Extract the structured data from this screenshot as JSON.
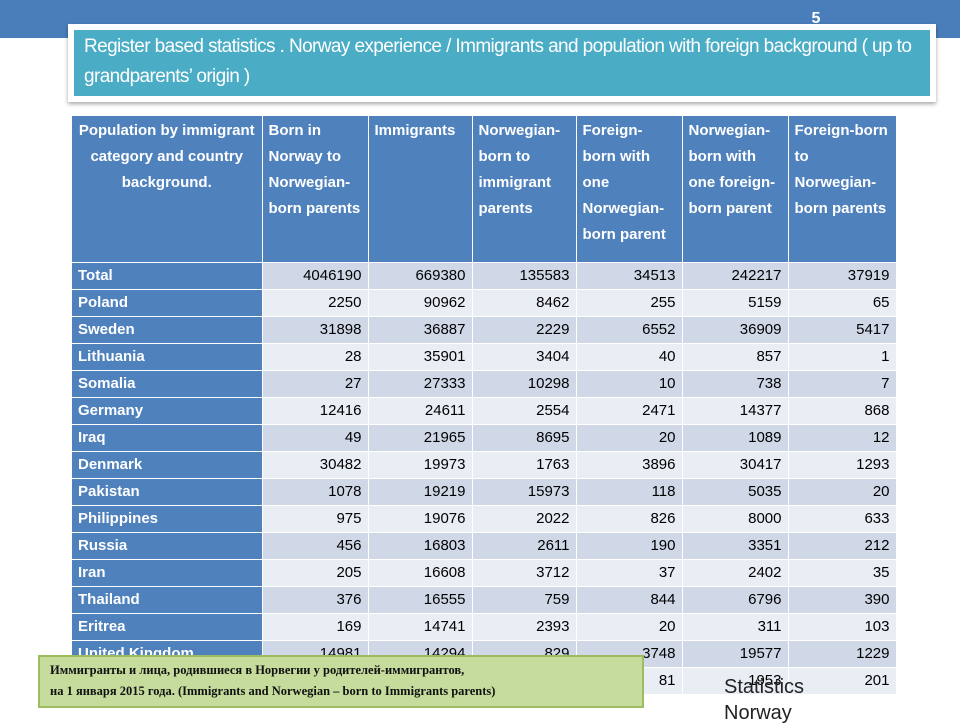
{
  "slide": {
    "number": "5",
    "title": "Register based statistics . Norway experience /  Immigrants and population with foreign background ( up to grandparents’ origin )"
  },
  "table": {
    "headers": [
      "Population by immigrant category and country background.",
      "Born in Norway to Norwegian-born parents",
      "Immigrants",
      "Norwegian-born to immigrant parents",
      "Foreign-born with one Norwegian-born parent",
      "Norwegian-born with one foreign-born parent",
      "Foreign-born to Norwegian-born parents"
    ],
    "rows": [
      {
        "country": "Total",
        "values": [
          "4046190",
          "669380",
          "135583",
          "34513",
          "242217",
          "37919"
        ]
      },
      {
        "country": "Poland",
        "values": [
          "2250",
          "90962",
          "8462",
          "255",
          "5159",
          "65"
        ]
      },
      {
        "country": "Sweden",
        "values": [
          "31898",
          "36887",
          "2229",
          "6552",
          "36909",
          "5417"
        ]
      },
      {
        "country": "Lithuania",
        "values": [
          "28",
          "35901",
          "3404",
          "40",
          "857",
          "1"
        ]
      },
      {
        "country": "Somalia",
        "values": [
          "27",
          "27333",
          "10298",
          "10",
          "738",
          "7"
        ]
      },
      {
        "country": "Germany",
        "values": [
          "12416",
          "24611",
          "2554",
          "2471",
          "14377",
          "868"
        ]
      },
      {
        "country": "Iraq",
        "values": [
          "49",
          "21965",
          "8695",
          "20",
          "1089",
          "12"
        ]
      },
      {
        "country": "Denmark",
        "values": [
          "30482",
          "19973",
          "1763",
          "3896",
          "30417",
          "1293"
        ]
      },
      {
        "country": "Pakistan",
        "values": [
          "1078",
          "19219",
          "15973",
          "118",
          "5035",
          "20"
        ]
      },
      {
        "country": "Philippines",
        "values": [
          "975",
          "19076",
          "2022",
          "826",
          "8000",
          "633"
        ]
      },
      {
        "country": "Russia",
        "values": [
          "456",
          "16803",
          "2611",
          "190",
          "3351",
          "212"
        ]
      },
      {
        "country": "Iran",
        "values": [
          "205",
          "16608",
          "3712",
          "37",
          "2402",
          "35"
        ]
      },
      {
        "country": "Thailand",
        "values": [
          "376",
          "16555",
          "759",
          "844",
          "6796",
          "390"
        ]
      },
      {
        "country": "Eritrea",
        "values": [
          "169",
          "14741",
          "2393",
          "20",
          "311",
          "103"
        ]
      },
      {
        "country": "United Kingdom",
        "values": [
          "14981",
          "14294",
          "829",
          "3748",
          "19577",
          "1229"
        ]
      },
      {
        "country": "",
        "values": [
          "",
          "",
          "",
          "81",
          "1953",
          "201"
        ]
      }
    ]
  },
  "note": {
    "line1": "Иммигранты и лица, родившиеся  в Норвегии у родителей-иммигрантов,",
    "line2": "на 1 января 2015 года.  (Immigrants  and  Norwegian – born to Immigrants parents)"
  },
  "source": {
    "line1": "Statistics",
    "line2": "Norway"
  }
}
